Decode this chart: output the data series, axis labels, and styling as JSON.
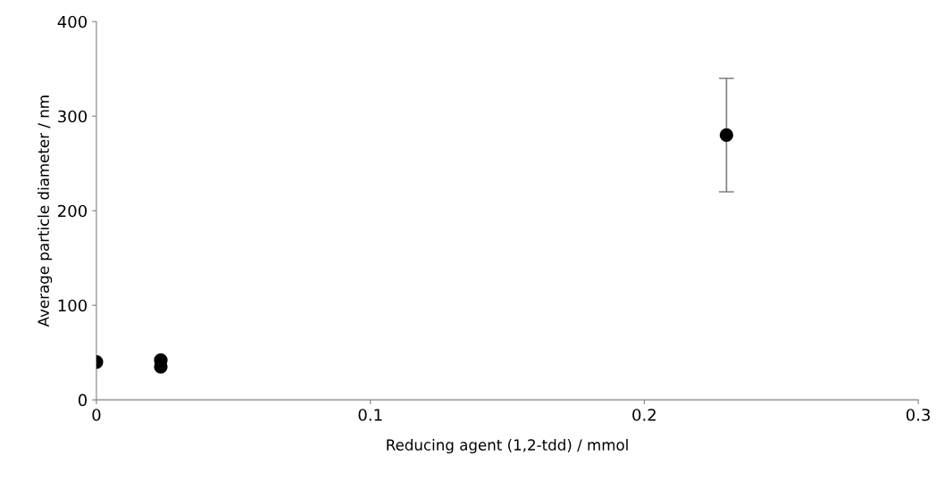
{
  "chart_data": {
    "type": "scatter",
    "xlabel": "Reducing agent (1,2-tdd) / mmol",
    "ylabel": "Average particle diameter / nm",
    "x": [
      0,
      0.0235,
      0.0235,
      0.23
    ],
    "series": [
      {
        "color": "#000000",
        "values": [
          40,
          42,
          35,
          280
        ],
        "errors": [
          null,
          null,
          null,
          60
        ]
      }
    ],
    "xlim": [
      0,
      0.3
    ],
    "xticks": [
      0,
      0.1,
      0.2,
      0.3
    ],
    "ylim": [
      0,
      400
    ],
    "yticks": [
      0,
      100,
      200,
      300,
      400
    ],
    "marker": "circle",
    "grid": false,
    "legend": false
  }
}
